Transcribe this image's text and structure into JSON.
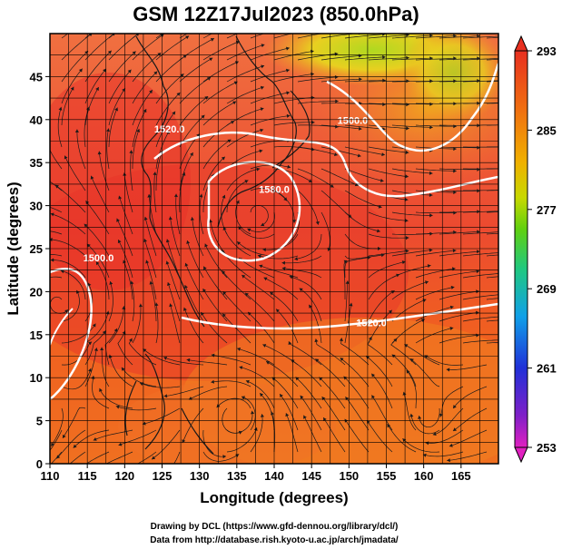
{
  "title": "GSM 12Z17Jul2023 (850.0hPa)",
  "xlabel": "Longitude (degrees)",
  "ylabel": "Latitude  (degrees)",
  "x_ticks": [
    110,
    115,
    120,
    125,
    130,
    135,
    140,
    145,
    150,
    155,
    160,
    165
  ],
  "y_ticks": [
    0,
    5,
    10,
    15,
    20,
    25,
    30,
    35,
    40,
    45
  ],
  "x_range": [
    110,
    170
  ],
  "y_range": [
    0,
    50
  ],
  "colorbar": {
    "ticks": [
      253,
      261,
      269,
      277,
      285,
      293
    ],
    "range": [
      253,
      293
    ],
    "colors": [
      "#e020c0",
      "#4020c8",
      "#2050e0",
      "#10b0e0",
      "#20c880",
      "#80d010",
      "#d8d800",
      "#f0a000",
      "#f06010",
      "#e83020"
    ]
  },
  "contour_labels": [
    {
      "text": "1520.0",
      "lon": 126.0,
      "lat": 38.5
    },
    {
      "text": "1500.0",
      "lon": 150.5,
      "lat": 39.5
    },
    {
      "text": "1580.0",
      "lon": 140.0,
      "lat": 31.5
    },
    {
      "text": "1500.0",
      "lon": 116.5,
      "lat": 23.5
    },
    {
      "text": "1520.0",
      "lon": 153.0,
      "lat": 16.0
    }
  ],
  "credits": {
    "line1": "Drawing by DCL (https://www.gfd-dennou.org/library/dcl/)",
    "line2": "Data from http://database.rish.kyoto-u.ac.jp/arch/jmadata/"
  }
}
